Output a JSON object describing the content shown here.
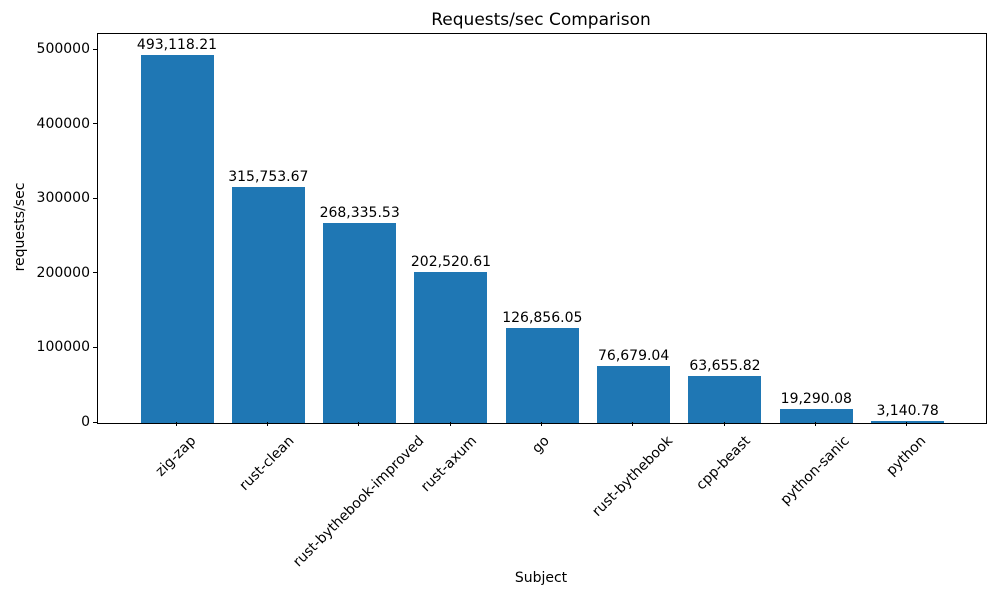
{
  "chart_data": {
    "type": "bar",
    "title": "Requests/sec Comparison",
    "xlabel": "Subject",
    "ylabel": "requests/sec",
    "categories": [
      "zig-zap",
      "rust-clean",
      "rust-bythebook-improved",
      "rust-axum",
      "go",
      "rust-bythebook",
      "cpp-beast",
      "python-sanic",
      "python"
    ],
    "values": [
      493118.21,
      315753.67,
      268335.53,
      202520.61,
      126856.05,
      76679.04,
      63655.82,
      19290.08,
      3140.78
    ],
    "value_labels": [
      "493,118.21",
      "315,753.67",
      "268,335.53",
      "202,520.61",
      "126,856.05",
      "76,679.04",
      "63,655.82",
      "19,290.08",
      "3,140.78"
    ],
    "yticks": [
      0,
      100000,
      200000,
      300000,
      400000,
      500000
    ],
    "ytick_labels": [
      "0",
      "100000",
      "200000",
      "300000",
      "400000",
      "500000"
    ],
    "ylim": [
      0,
      521448
    ],
    "bar_color": "#1f77b4",
    "text_color": "#000000",
    "grid": false,
    "legend": "none",
    "x_tick_rotation_deg": 45
  }
}
